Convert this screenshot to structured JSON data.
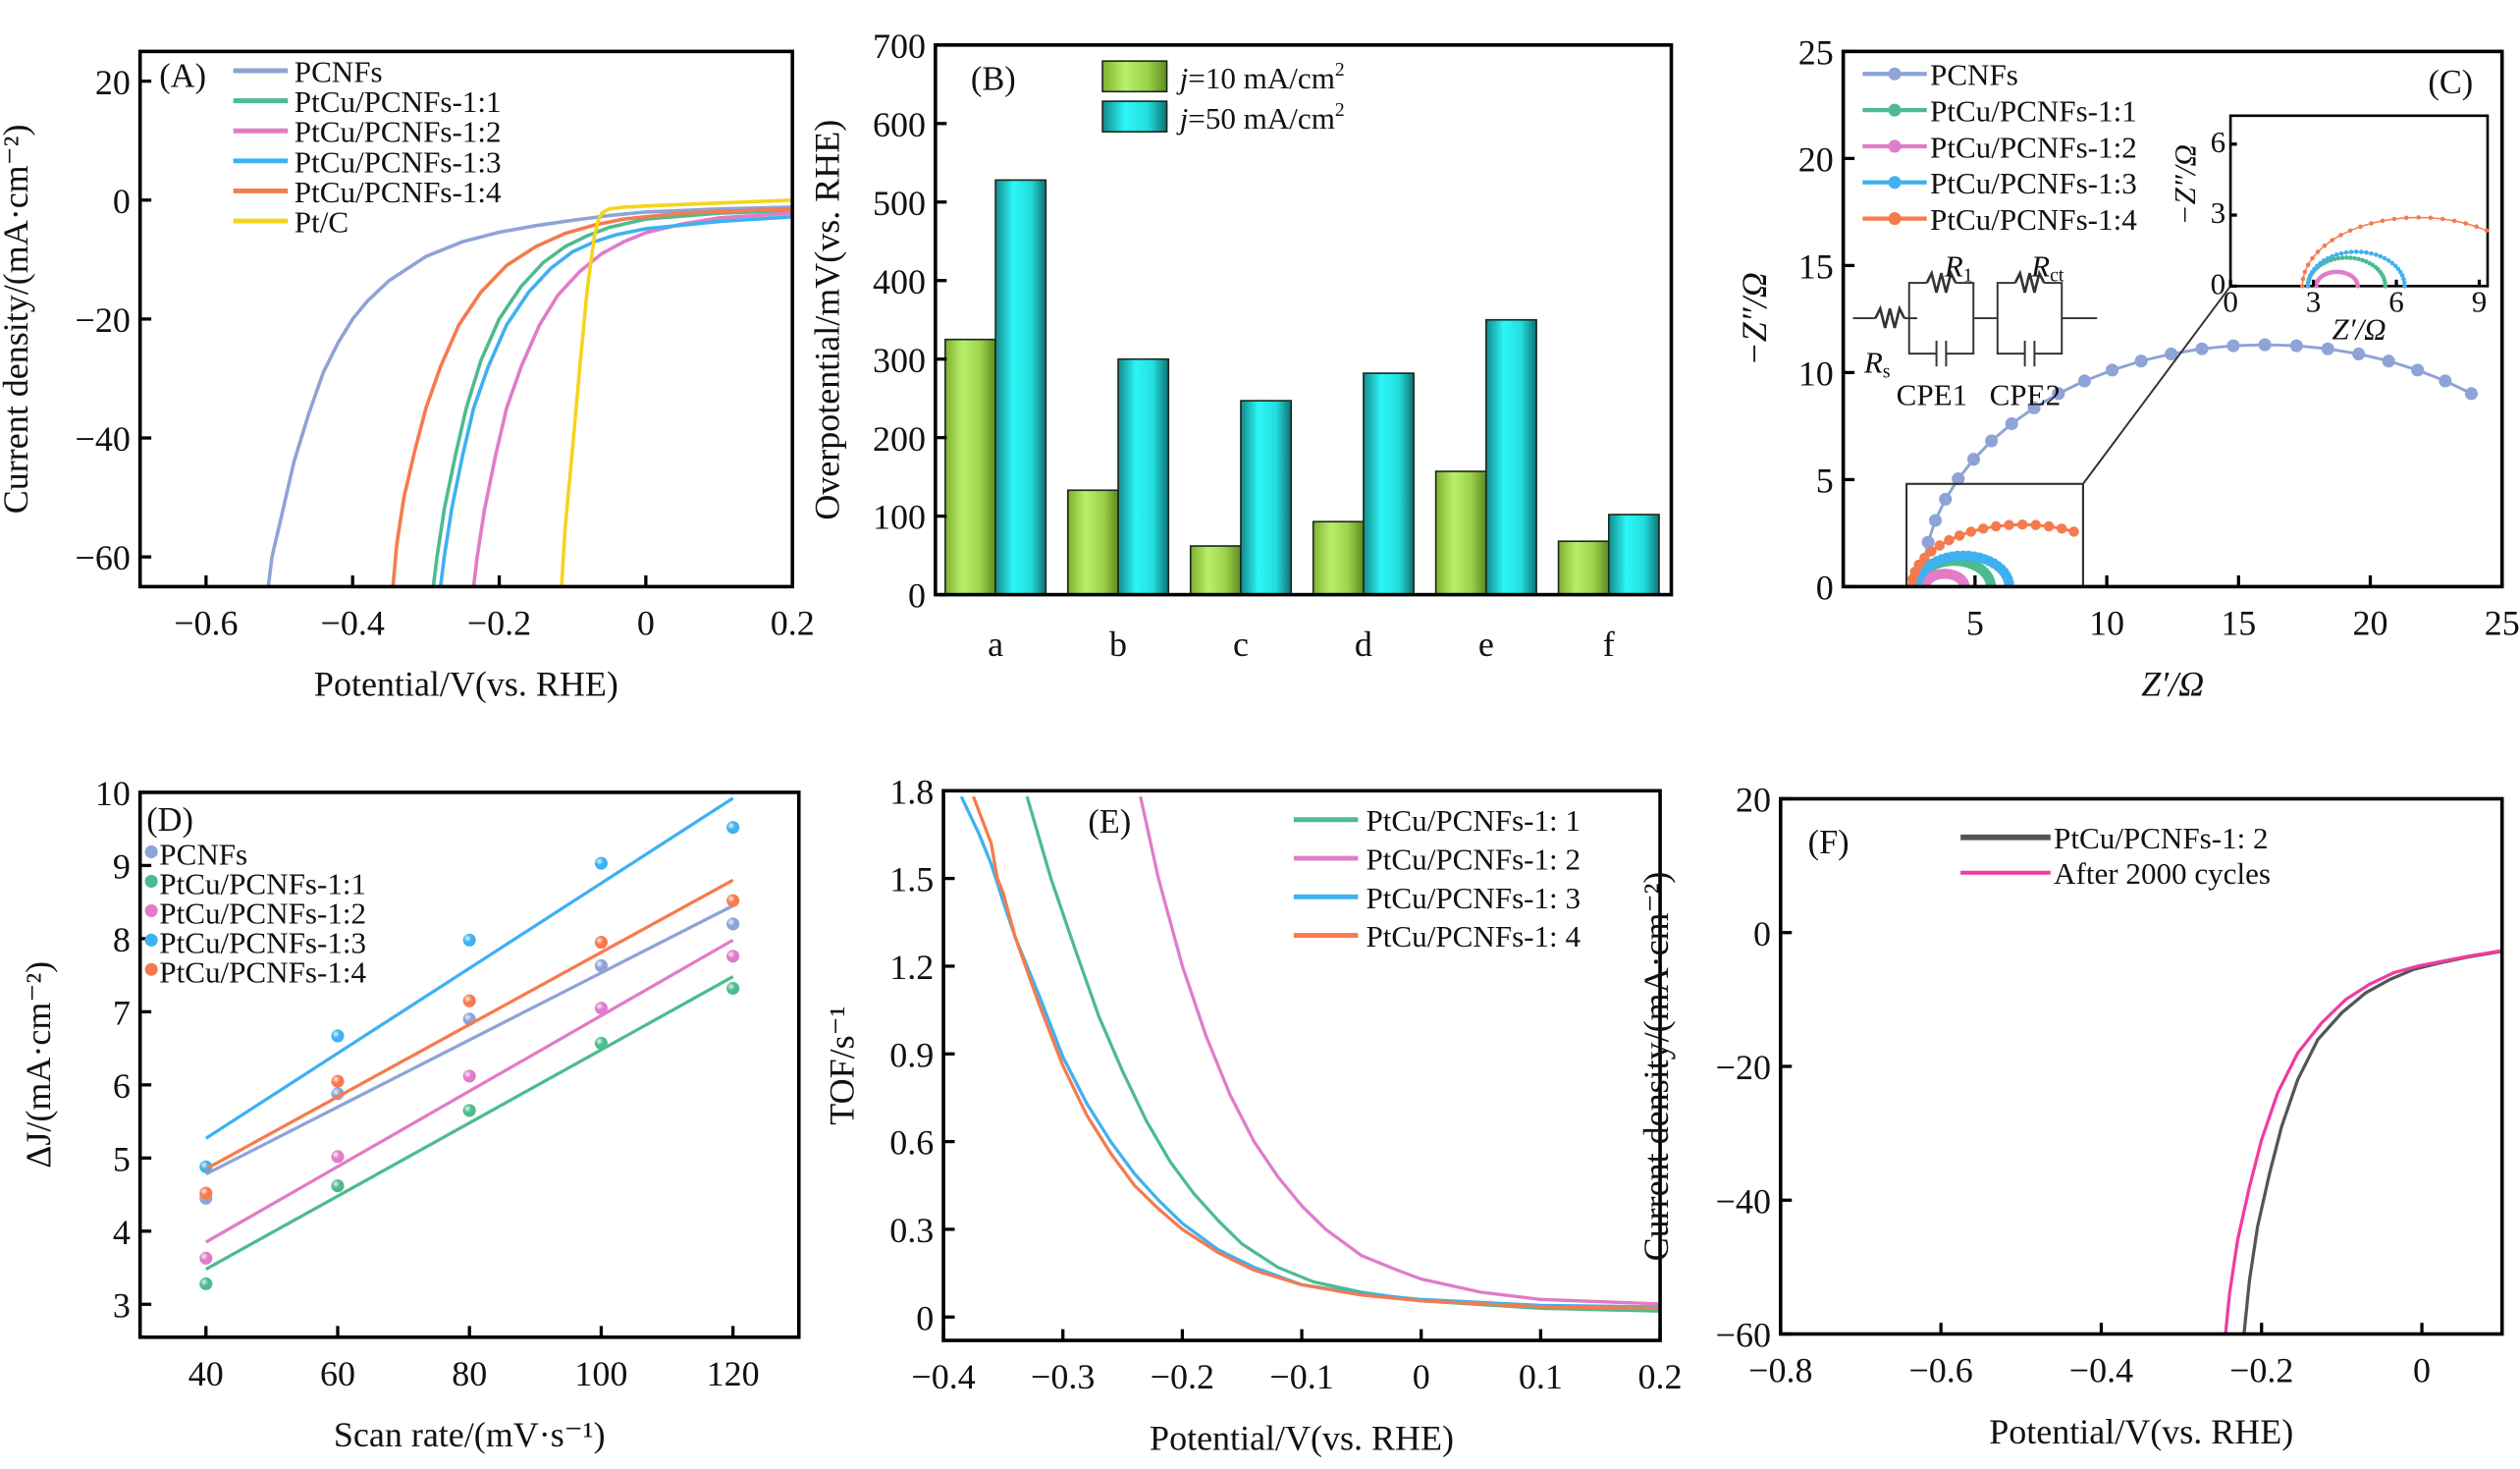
{
  "figure": {
    "panels": [
      "A",
      "B",
      "C",
      "D",
      "E",
      "F"
    ]
  },
  "colors": {
    "PCNFs": "#8ea3d6",
    "PtCu/PCNFs-1:1": "#4dbb8f",
    "PtCu/PCNFs-1:2": "#e07cc8",
    "PtCu/PCNFs-1:3": "#3fb1f0",
    "PtCu/PCNFs-1:4": "#f57b4e",
    "Pt/C": "#f5d51c",
    "bar_green": "#a6e04d",
    "bar_cyan": "#22e8ea",
    "F_initial": "#555555",
    "F_after": "#f03ca0"
  },
  "chart_data": [
    {
      "id": "A",
      "type": "line",
      "panel_label": "(A)",
      "xlabel": "Potential/V(vs. RHE)",
      "ylabel": "Current density/(mA·cm⁻²)",
      "xlim": [
        -0.69,
        0.2
      ],
      "ylim": [
        -65,
        25
      ],
      "xticks": [
        -0.6,
        -0.4,
        -0.2,
        0,
        0.2
      ],
      "xtick_labels": [
        "−0.6",
        "−0.4",
        "−0.2",
        "0",
        "0.2"
      ],
      "yticks": [
        20,
        0,
        -20,
        -40,
        -60
      ],
      "ytick_labels": [
        "20",
        "0",
        "−20",
        "−40",
        "−60"
      ],
      "legend_position": "top-left",
      "series": [
        {
          "name": "PCNFs",
          "x": [
            -0.515,
            -0.51,
            -0.495,
            -0.48,
            -0.46,
            -0.44,
            -0.42,
            -0.4,
            -0.38,
            -0.35,
            -0.3,
            -0.25,
            -0.2,
            -0.15,
            -0.1,
            -0.05,
            0,
            0.1,
            0.2
          ],
          "y": [
            -65,
            -60,
            -52,
            -44,
            -36,
            -29,
            -24,
            -20,
            -17,
            -13.5,
            -9.5,
            -7,
            -5.4,
            -4.3,
            -3.4,
            -2.6,
            -2,
            -1.5,
            -1.2
          ]
        },
        {
          "name": "PtCu/PCNFs-1:1",
          "x": [
            -0.29,
            -0.285,
            -0.275,
            -0.26,
            -0.245,
            -0.225,
            -0.2,
            -0.17,
            -0.14,
            -0.11,
            -0.08,
            -0.05,
            0,
            0.1,
            0.2
          ],
          "y": [
            -65,
            -60,
            -52,
            -43,
            -35,
            -27,
            -20,
            -14.5,
            -10.5,
            -7.8,
            -6,
            -4.6,
            -3.2,
            -2.2,
            -1.8
          ]
        },
        {
          "name": "PtCu/PCNFs-1:2",
          "x": [
            -0.235,
            -0.23,
            -0.22,
            -0.205,
            -0.19,
            -0.17,
            -0.145,
            -0.12,
            -0.09,
            -0.06,
            -0.03,
            0,
            0.05,
            0.1,
            0.2
          ],
          "y": [
            -65,
            -60,
            -52,
            -43,
            -35,
            -28,
            -21,
            -16,
            -12,
            -9,
            -7,
            -5.5,
            -4,
            -3,
            -2.2
          ]
        },
        {
          "name": "PtCu/PCNFs-1:3",
          "x": [
            -0.28,
            -0.275,
            -0.265,
            -0.25,
            -0.235,
            -0.215,
            -0.19,
            -0.16,
            -0.13,
            -0.1,
            -0.07,
            -0.04,
            0,
            0.1,
            0.2
          ],
          "y": [
            -65,
            -60,
            -52,
            -43,
            -35,
            -28,
            -21,
            -15.5,
            -11.5,
            -8.7,
            -7,
            -5.8,
            -4.8,
            -3.6,
            -2.8
          ]
        },
        {
          "name": "PtCu/PCNFs-1:4",
          "x": [
            -0.345,
            -0.34,
            -0.33,
            -0.315,
            -0.3,
            -0.28,
            -0.255,
            -0.225,
            -0.19,
            -0.15,
            -0.11,
            -0.07,
            -0.03,
            0.05,
            0.2
          ],
          "y": [
            -65,
            -58,
            -50,
            -42,
            -35,
            -28,
            -21,
            -15.5,
            -11,
            -7.8,
            -5.6,
            -4.2,
            -3.2,
            -2.2,
            -1.5
          ]
        },
        {
          "name": "Pt/C",
          "x": [
            -0.115,
            -0.11,
            -0.1,
            -0.09,
            -0.08,
            -0.07,
            -0.065,
            -0.06,
            -0.05,
            -0.03,
            0,
            0.1,
            0.2
          ],
          "y": [
            -65,
            -55,
            -42,
            -28,
            -15,
            -6,
            -3.5,
            -2.2,
            -1.5,
            -1.2,
            -1,
            -0.5,
            0
          ]
        }
      ]
    },
    {
      "id": "B",
      "type": "bar",
      "panel_label": "(B)",
      "xlabel": "",
      "ylabel": "Overpotential/mV(vs. RHE)",
      "ylim": [
        0,
        700
      ],
      "yticks": [
        0,
        100,
        200,
        300,
        400,
        500,
        600,
        700
      ],
      "categories": [
        "a",
        "b",
        "c",
        "d",
        "e",
        "f"
      ],
      "legend_position": "top-left",
      "series": [
        {
          "name": "j=10 mA/cm²",
          "name_italic": "j",
          "name_rest": "=10 mA/cm",
          "sup": "2",
          "values": [
            325,
            133,
            62,
            93,
            157,
            68
          ]
        },
        {
          "name": "j=50 mA/cm²",
          "name_italic": "j",
          "name_rest": "=50 mA/cm",
          "sup": "2",
          "values": [
            528,
            300,
            247,
            282,
            350,
            102
          ]
        }
      ]
    },
    {
      "id": "C",
      "type": "scatter",
      "panel_label": "(C)",
      "xlabel": "Z′/Ω",
      "ylabel": "−Z″/Ω",
      "xlim": [
        0,
        25
      ],
      "ylim": [
        0,
        25
      ],
      "xticks": [
        5,
        10,
        15,
        20,
        25
      ],
      "yticks": [
        0,
        5,
        10,
        15,
        20,
        25
      ],
      "legend_position": "top-left",
      "series": [
        {
          "name": "PCNFs",
          "semicircle": {
            "start": 3.0,
            "end": 29.0,
            "peak": 11.3,
            "x_max_shown": 24.5
          }
        },
        {
          "name": "PtCu/PCNFs-1:1",
          "semicircle": {
            "start": 2.8,
            "end": 5.6,
            "peak": 1.2
          }
        },
        {
          "name": "PtCu/PCNFs-1:2",
          "semicircle": {
            "start": 3.1,
            "end": 4.6,
            "peak": 0.6
          }
        },
        {
          "name": "PtCu/PCNFs-1:3",
          "semicircle": {
            "start": 2.8,
            "end": 6.3,
            "peak": 1.45
          }
        },
        {
          "name": "PtCu/PCNFs-1:4",
          "semicircle": {
            "start": 2.6,
            "end": 11.0,
            "peak": 2.9,
            "x_max_shown": 9.0
          }
        }
      ],
      "zoom_box": {
        "x": [
          2.4,
          9.1
        ],
        "y": [
          0,
          4.8
        ]
      },
      "inset": {
        "xlabel": "Z′/Ω",
        "ylabel": "−Z″/Ω",
        "xlim": [
          0,
          9.3
        ],
        "ylim": [
          0,
          7.2
        ],
        "xticks": [
          0,
          3,
          6,
          9
        ],
        "yticks": [
          0,
          3,
          6
        ]
      },
      "circuit": {
        "labels": {
          "Rs": "R",
          "Rs_sub": "s",
          "R1": "R",
          "R1_sub": "1",
          "Rct": "R",
          "Rct_sub": "ct",
          "CPE1": "CPE1",
          "CPE2": "CPE2"
        }
      }
    },
    {
      "id": "D",
      "type": "scatter",
      "panel_label": "(D)",
      "xlabel": "Scan rate/(mV·s⁻¹)",
      "ylabel": "ΔJ/(mA·cm⁻²)",
      "xlim": [
        30,
        130
      ],
      "ylim": [
        2.55,
        10
      ],
      "xticks": [
        40,
        60,
        80,
        100,
        120
      ],
      "yticks": [
        3,
        4,
        5,
        6,
        7,
        8,
        9,
        10
      ],
      "x": [
        40,
        60,
        80,
        100,
        120
      ],
      "legend_position": "top-left",
      "series": [
        {
          "name": "PCNFs",
          "values": [
            4.45,
            5.88,
            6.9,
            7.63,
            8.2
          ],
          "fit": [
            4.78,
            8.45
          ]
        },
        {
          "name": "PtCu/PCNFs-1:1",
          "values": [
            3.28,
            4.62,
            5.65,
            6.57,
            7.32
          ],
          "fit": [
            3.48,
            7.48
          ]
        },
        {
          "name": "PtCu/PCNFs-1:2",
          "values": [
            3.63,
            5.02,
            6.12,
            7.05,
            7.76
          ],
          "fit": [
            3.85,
            7.98
          ]
        },
        {
          "name": "PtCu/PCNFs-1:3",
          "values": [
            4.88,
            6.67,
            7.98,
            9.03,
            9.52
          ],
          "fit": [
            5.27,
            9.92
          ]
        },
        {
          "name": "PtCu/PCNFs-1:4",
          "values": [
            4.52,
            6.05,
            7.15,
            7.95,
            8.52
          ],
          "fit": [
            4.85,
            8.8
          ]
        }
      ]
    },
    {
      "id": "E",
      "type": "line",
      "panel_label": "(E)",
      "xlabel": "Potential/V(vs. RHE)",
      "ylabel": "TOF/s⁻¹",
      "xlim": [
        -0.4,
        0.2
      ],
      "ylim": [
        -0.08,
        1.8
      ],
      "xticks": [
        -0.4,
        -0.3,
        -0.2,
        -0.1,
        0,
        0.1,
        0.2
      ],
      "xtick_labels": [
        "−0.4",
        "−0.3",
        "−0.2",
        "−0.1",
        "0",
        "0.1",
        "0.2"
      ],
      "yticks": [
        0,
        0.3,
        0.6,
        0.9,
        1.2,
        1.5,
        1.8
      ],
      "ytick_labels": [
        "0",
        "0.3",
        "0.6",
        "0.9",
        "1.2",
        "1.5",
        "1.8"
      ],
      "legend_position": "top-right",
      "series": [
        {
          "name": "PtCu/PCNFs-1:1",
          "x": [
            -0.33,
            -0.31,
            -0.29,
            -0.27,
            -0.25,
            -0.23,
            -0.21,
            -0.19,
            -0.17,
            -0.15,
            -0.12,
            -0.09,
            -0.05,
            0,
            0.1,
            0.2
          ],
          "y": [
            1.78,
            1.5,
            1.26,
            1.03,
            0.84,
            0.67,
            0.53,
            0.42,
            0.33,
            0.25,
            0.17,
            0.12,
            0.085,
            0.055,
            0.03,
            0.02
          ]
        },
        {
          "name": "PtCu/PCNFs-1:2",
          "x": [
            -0.235,
            -0.22,
            -0.2,
            -0.18,
            -0.16,
            -0.14,
            -0.12,
            -0.1,
            -0.08,
            -0.05,
            -0.02,
            0,
            0.05,
            0.1,
            0.2
          ],
          "y": [
            1.78,
            1.5,
            1.2,
            0.96,
            0.76,
            0.6,
            0.48,
            0.38,
            0.3,
            0.21,
            0.16,
            0.13,
            0.085,
            0.06,
            0.045
          ]
        },
        {
          "name": "PtCu/PCNFs-1:3",
          "x": [
            -0.385,
            -0.37,
            -0.36,
            -0.35,
            -0.34,
            -0.32,
            -0.3,
            -0.28,
            -0.26,
            -0.24,
            -0.22,
            -0.2,
            -0.17,
            -0.14,
            -0.1,
            -0.05,
            0,
            0.1,
            0.2
          ],
          "y": [
            1.78,
            1.65,
            1.55,
            1.42,
            1.3,
            1.1,
            0.89,
            0.73,
            0.6,
            0.49,
            0.4,
            0.32,
            0.23,
            0.17,
            0.11,
            0.08,
            0.06,
            0.04,
            0.035
          ]
        },
        {
          "name": "PtCu/PCNFs-1:4",
          "x": [
            -0.375,
            -0.36,
            -0.355,
            -0.35,
            -0.34,
            -0.32,
            -0.3,
            -0.28,
            -0.26,
            -0.24,
            -0.22,
            -0.2,
            -0.17,
            -0.14,
            -0.1,
            -0.05,
            0,
            0.1,
            0.2
          ],
          "y": [
            1.78,
            1.62,
            1.5,
            1.45,
            1.3,
            1.07,
            0.86,
            0.69,
            0.56,
            0.45,
            0.37,
            0.3,
            0.22,
            0.16,
            0.11,
            0.075,
            0.055,
            0.035,
            0.03
          ]
        }
      ]
    },
    {
      "id": "F",
      "type": "line",
      "panel_label": "(F)",
      "xlabel": "Potential/V(vs. RHE)",
      "ylabel": "Current density/(mA·cm⁻²)",
      "xlim": [
        -0.8,
        0.1
      ],
      "ylim": [
        -60,
        20
      ],
      "xticks": [
        -0.8,
        -0.6,
        -0.4,
        -0.2,
        0
      ],
      "xtick_labels": [
        "−0.8",
        "−0.6",
        "−0.4",
        "−0.2",
        "0"
      ],
      "yticks": [
        20,
        0,
        -20,
        -40,
        -60
      ],
      "ytick_labels": [
        "20",
        "0",
        "−20",
        "−40",
        "−60"
      ],
      "legend_position": "top-left",
      "series": [
        {
          "name": "PtCu/PCNFs-1: 2",
          "x": [
            -0.222,
            -0.215,
            -0.205,
            -0.19,
            -0.175,
            -0.155,
            -0.13,
            -0.1,
            -0.07,
            -0.04,
            -0.01,
            0.02,
            0.06,
            0.1
          ],
          "y": [
            -60,
            -52,
            -44,
            -36,
            -29,
            -22,
            -16,
            -12,
            -9,
            -7,
            -5.5,
            -4.6,
            -3.6,
            -2.8
          ]
        },
        {
          "name": "After 2000 cycles",
          "x": [
            -0.245,
            -0.24,
            -0.23,
            -0.215,
            -0.2,
            -0.18,
            -0.155,
            -0.125,
            -0.095,
            -0.065,
            -0.035,
            -0.005,
            0.03,
            0.06,
            0.1
          ],
          "y": [
            -60,
            -54,
            -46,
            -38,
            -31,
            -24,
            -18,
            -13.5,
            -10,
            -7.7,
            -6,
            -5,
            -4.2,
            -3.5,
            -2.7
          ]
        }
      ]
    }
  ]
}
